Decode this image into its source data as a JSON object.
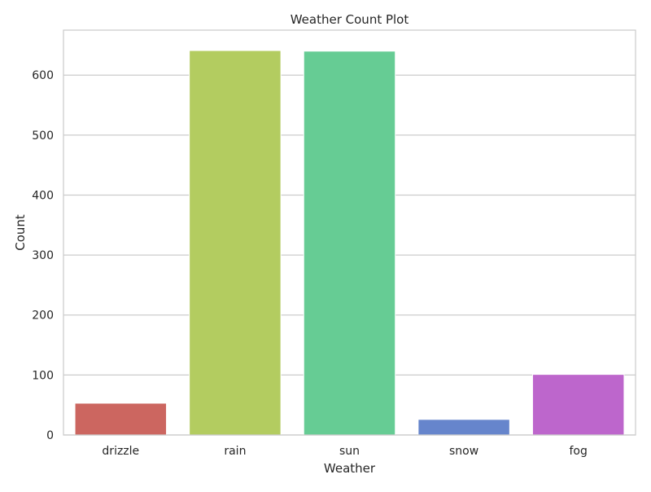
{
  "chart_data": {
    "type": "bar",
    "title": "Weather Count Plot",
    "xlabel": "Weather",
    "ylabel": "Count",
    "categories": [
      "drizzle",
      "rain",
      "sun",
      "snow",
      "fog"
    ],
    "values": [
      53,
      641,
      640,
      26,
      101
    ],
    "colors": [
      "#cc6660",
      "#b3cc60",
      "#66cc94",
      "#6685cc",
      "#bd66cc"
    ],
    "ylim": [
      0,
      675
    ],
    "yticks": [
      0,
      100,
      200,
      300,
      400,
      500,
      600
    ],
    "grid": true,
    "grid_axis": "y",
    "legend": false
  }
}
